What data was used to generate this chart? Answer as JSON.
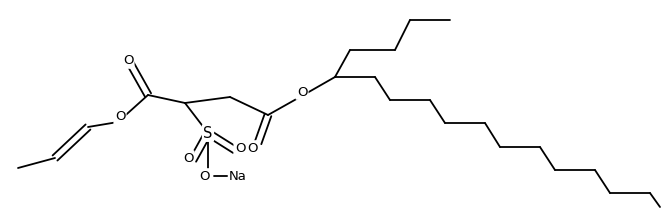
{
  "line_color": "#000000",
  "line_width": 1.3,
  "bg_color": "#ffffff",
  "figsize": [
    6.65,
    2.15
  ],
  "dpi": 100,
  "font_size": 9.5,
  "xlim": [
    0,
    665
  ],
  "ylim": [
    0,
    215
  ]
}
